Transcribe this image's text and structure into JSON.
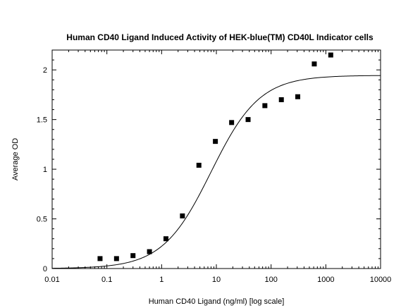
{
  "chart_data": {
    "type": "scatter",
    "title": "Human CD40 Ligand Induced Activity of HEK-blue(TM) CD40L Indicator cells",
    "xlabel": "Human CD40 Ligand (ng/ml) [log scale]",
    "ylabel": "Average OD",
    "x_scale": "log",
    "xlim": [
      0.01,
      10000
    ],
    "ylim": [
      0,
      2.2
    ],
    "x_tick_labels": [
      "0.01",
      "0.1",
      "1",
      "10",
      "100",
      "1000",
      "10000"
    ],
    "x_tick_values": [
      0.01,
      0.1,
      1,
      10,
      100,
      1000,
      10000
    ],
    "y_tick_labels": [
      "0",
      "0.5",
      "1",
      "1.5",
      "2"
    ],
    "y_tick_values": [
      0,
      0.5,
      1,
      1.5,
      2
    ],
    "grid": false,
    "series": [
      {
        "kind": "points",
        "x": [
          0.075,
          0.15,
          0.3,
          0.6,
          1.2,
          2.4,
          4.8,
          9.6,
          19,
          38,
          77,
          154,
          307,
          615,
          1230
        ],
        "y": [
          0.1,
          0.1,
          0.13,
          0.17,
          0.3,
          0.53,
          1.04,
          1.28,
          1.47,
          1.5,
          1.64,
          1.7,
          1.73,
          2.06,
          2.15
        ]
      },
      {
        "kind": "fit-curve",
        "model": "four-parameter-logistic",
        "bottom": 0.0,
        "top": 1.945,
        "ec50": 8.0,
        "hill": 0.98
      }
    ]
  }
}
